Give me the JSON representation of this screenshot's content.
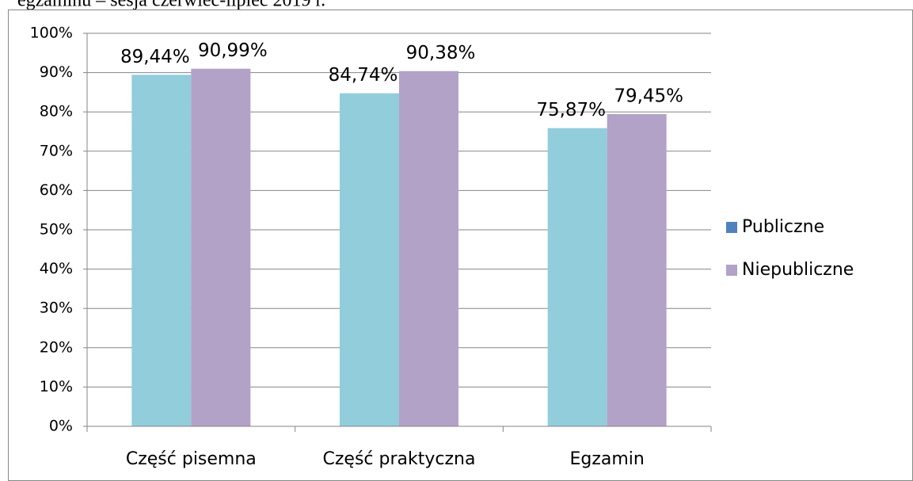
{
  "chart_data": {
    "type": "bar",
    "title": "egzaminu – sesja czerwiec-lipiec 2019 r.",
    "categories": [
      "Część pisemna",
      "Część praktyczna",
      "Egzamin"
    ],
    "series": [
      {
        "name": "Publiczne",
        "color": "#92cddc",
        "legend_color": "#4f81bd",
        "values": [
          89.44,
          84.74,
          75.87
        ],
        "value_labels": [
          "89,44%",
          "84,74%",
          "75,87%"
        ]
      },
      {
        "name": "Niepubliczne",
        "color": "#b2a2c7",
        "legend_color": "#b2a2c7",
        "values": [
          90.99,
          90.38,
          79.45
        ],
        "value_labels": [
          "90,99%",
          "90,38%",
          "79,45%"
        ]
      }
    ],
    "ylim": [
      0,
      100
    ],
    "yticks": [
      {
        "value": 0,
        "label": "0%"
      },
      {
        "value": 10,
        "label": "10%"
      },
      {
        "value": 20,
        "label": "20%"
      },
      {
        "value": 30,
        "label": "30%"
      },
      {
        "value": 40,
        "label": "40%"
      },
      {
        "value": 50,
        "label": "50%"
      },
      {
        "value": 60,
        "label": "60%"
      },
      {
        "value": 70,
        "label": "70%"
      },
      {
        "value": 80,
        "label": "80%"
      },
      {
        "value": 90,
        "label": "90%"
      },
      {
        "value": 100,
        "label": "100%"
      }
    ],
    "grid": true,
    "legend": "right"
  }
}
